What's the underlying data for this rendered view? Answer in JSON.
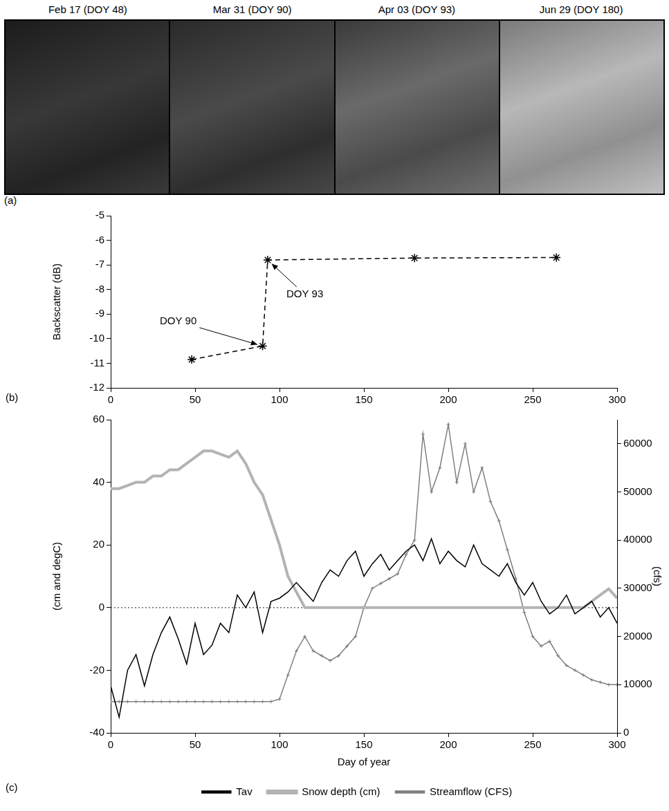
{
  "panel_a": {
    "panel": "(a)",
    "titles": [
      "Feb 17 (DOY 48)",
      "Mar 31 (DOY 90)",
      "Apr 03 (DOY 93)",
      "Jun 29 (DOY 180)"
    ]
  },
  "chart_data": [
    {
      "type": "line",
      "panel": "(b)",
      "ylabel": "Backscatter (dB)",
      "x": [
        48,
        90,
        93,
        180,
        264
      ],
      "values": [
        -10.85,
        -10.3,
        -6.8,
        -6.72,
        -6.7
      ],
      "color": "#000000",
      "marker": "star",
      "line_style": "dashed",
      "xlim": [
        0,
        300
      ],
      "xticks": [
        0,
        50,
        100,
        150,
        200,
        250,
        300
      ],
      "ylim": [
        -12,
        -5
      ],
      "yticks": [
        -12,
        -11,
        -10,
        -9,
        -8,
        -7,
        -6,
        -5
      ],
      "grid": false,
      "annotations": [
        {
          "text": "DOY 90",
          "x": 40,
          "y": -9.3,
          "arrow_to": [
            90,
            -10.3
          ]
        },
        {
          "text": "DOY 93",
          "x": 115,
          "y": -8.2,
          "arrow_to": [
            93,
            -6.8
          ]
        }
      ]
    },
    {
      "type": "line",
      "panel": "(c)",
      "xlabel": "Day of year",
      "ylabel": "(cm and degC)",
      "y2label": "(cfs)",
      "x": [
        0,
        5,
        10,
        15,
        20,
        25,
        30,
        35,
        40,
        45,
        50,
        55,
        60,
        65,
        70,
        75,
        80,
        85,
        90,
        95,
        100,
        105,
        110,
        115,
        120,
        125,
        130,
        135,
        140,
        145,
        150,
        155,
        160,
        165,
        170,
        175,
        180,
        185,
        190,
        195,
        200,
        205,
        210,
        215,
        220,
        225,
        230,
        235,
        240,
        245,
        250,
        255,
        260,
        265,
        270,
        275,
        280,
        285,
        290,
        295,
        300
      ],
      "xlim": [
        0,
        300
      ],
      "xticks": [
        0,
        50,
        100,
        150,
        200,
        250,
        300
      ],
      "ylim": [
        -40,
        60
      ],
      "yticks": [
        -40,
        -20,
        0,
        20,
        40,
        60
      ],
      "y2lim": [
        0,
        65000
      ],
      "y2ticks": [
        0,
        10000,
        20000,
        30000,
        40000,
        50000,
        60000
      ],
      "grid": false,
      "legend": "bottom",
      "reference_lines": [
        {
          "axis": "y",
          "value": 0,
          "line_style": "dotted"
        }
      ],
      "series": [
        {
          "name": "Tav",
          "color": "#000000",
          "marker": "none",
          "line_style": "solid",
          "values": [
            -25,
            -35,
            -20,
            -15,
            -25,
            -15,
            -8,
            -3,
            -10,
            -18,
            -5,
            -15,
            -12,
            -5,
            -8,
            4,
            0,
            5,
            -8,
            2,
            3,
            5,
            8,
            5,
            2,
            8,
            12,
            10,
            15,
            18,
            10,
            14,
            17,
            12,
            15,
            18,
            20,
            15,
            22,
            14,
            18,
            15,
            13,
            20,
            14,
            12,
            10,
            14,
            8,
            4,
            8,
            2,
            -2,
            0,
            4,
            -2,
            0,
            2,
            -3,
            0,
            -5
          ]
        },
        {
          "name": "Snow depth (cm)",
          "color": "#b3b3b3",
          "marker": "none",
          "line_style": "solid",
          "values": [
            38,
            38,
            39,
            40,
            40,
            42,
            42,
            44,
            44,
            46,
            48,
            50,
            50,
            49,
            48,
            50,
            46,
            40,
            36,
            28,
            20,
            10,
            5,
            0,
            0,
            0,
            0,
            0,
            0,
            0,
            0,
            0,
            0,
            0,
            0,
            0,
            0,
            0,
            0,
            0,
            0,
            0,
            0,
            0,
            0,
            0,
            0,
            0,
            0,
            0,
            0,
            0,
            0,
            0,
            0,
            0,
            0,
            2,
            4,
            6,
            3
          ]
        },
        {
          "name": "Streamflow (CFS)",
          "color": "#7f7f7f",
          "marker": "cross",
          "line_style": "solid",
          "axis": "y2",
          "values": [
            6500,
            6500,
            6500,
            6500,
            6500,
            6500,
            6500,
            6500,
            6500,
            6500,
            6500,
            6500,
            6500,
            6500,
            6500,
            6500,
            6500,
            6500,
            6500,
            6500,
            7000,
            12000,
            17000,
            20000,
            17000,
            16000,
            15000,
            16000,
            18000,
            20000,
            26000,
            30000,
            31000,
            32000,
            33000,
            37000,
            40000,
            62000,
            50000,
            55000,
            64000,
            52000,
            60000,
            50000,
            55000,
            48000,
            44000,
            38000,
            32000,
            25000,
            20000,
            18000,
            19000,
            16000,
            14000,
            13000,
            12000,
            11000,
            10500,
            10000,
            10000
          ]
        }
      ]
    }
  ]
}
